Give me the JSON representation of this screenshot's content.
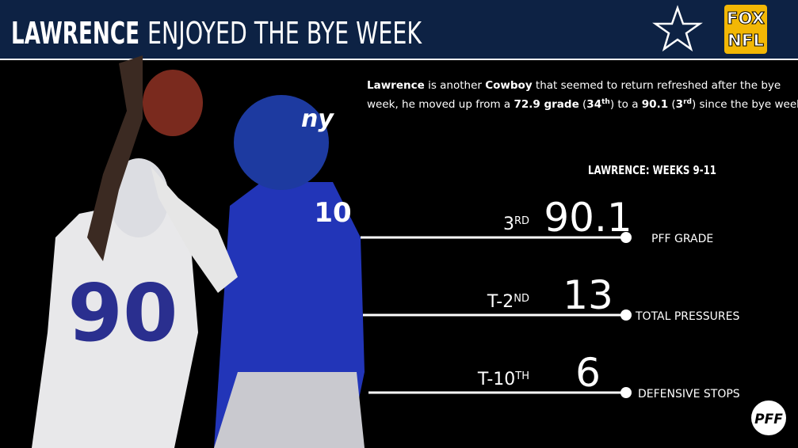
{
  "header": {
    "title_bold": "LAWRENCE",
    "title_rest": "ENJOYED THE BYE WEEK",
    "logo_top": "FOX",
    "logo_bottom": "NFL"
  },
  "paragraph": {
    "lines": [
      [
        {
          "text": "Lawrence",
          "bold": true
        },
        {
          "text": " is another "
        },
        {
          "text": "Cowboy",
          "bold": true
        },
        {
          "text": " that seemed to return refreshed after the bye"
        }
      ],
      [
        {
          "text": "week, he moved up from a "
        },
        {
          "text": "72.9 grade",
          "bold": true
        },
        {
          "text": " ("
        },
        {
          "text": "34",
          "bold": true
        },
        {
          "text": "th",
          "bold": true,
          "sup": true
        },
        {
          "text": ") to a "
        },
        {
          "text": "90.1",
          "bold": true
        },
        {
          "text": " ("
        },
        {
          "text": "3",
          "bold": true
        },
        {
          "text": "rd",
          "bold": true,
          "sup": true
        },
        {
          "text": ") since the bye week."
        }
      ]
    ]
  },
  "stats": {
    "title": "LAWRENCE: WEEKS 9-11",
    "items": [
      {
        "rank": "3",
        "rank_suffix": "RD",
        "value": "90.1",
        "label": "PFF GRADE"
      },
      {
        "rank": "T-2",
        "rank_suffix": "ND",
        "value": "13",
        "label": "TOTAL PRESSURES"
      },
      {
        "rank": "T-10",
        "rank_suffix": "TH",
        "value": "6",
        "label": "DEFENSIVE STOPS"
      }
    ]
  },
  "footer": {
    "logo": "PFF"
  }
}
